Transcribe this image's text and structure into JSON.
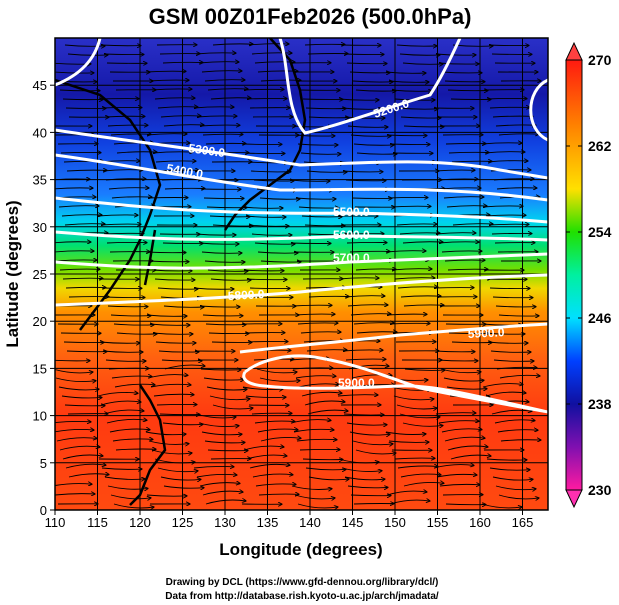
{
  "chart_data": {
    "type": "heatmap",
    "title": "GSM 00Z01Feb2026 (500.0hPa)",
    "xlabel": "Longitude (degrees)",
    "ylabel": "Latitude  (degrees)",
    "xlim": [
      110,
      168
    ],
    "ylim": [
      0,
      50
    ],
    "xticks": [
      "110",
      "115",
      "120",
      "125",
      "130",
      "135",
      "140",
      "145",
      "150",
      "155",
      "160",
      "165"
    ],
    "yticks": [
      "0",
      "5",
      "10",
      "15",
      "20",
      "25",
      "30",
      "35",
      "40",
      "45"
    ],
    "grid": true,
    "shaded_field": "temperature (K)",
    "colorbar": {
      "range": [
        230,
        270
      ],
      "ticks": [
        "270",
        "262",
        "254",
        "246",
        "238",
        "230"
      ],
      "colors": [
        "#ff1a7a",
        "#a010b0",
        "#1010a0",
        "#0040ff",
        "#00e0ff",
        "#00e060",
        "#20e000",
        "#ffe000",
        "#ff8000",
        "#ff2000"
      ]
    },
    "contour_field": "geopotential height (m)",
    "contour_labels": [
      "5200.0",
      "5300.0",
      "5400.0",
      "5500.0",
      "5600.0",
      "5700.0",
      "5800.0",
      "5900.0",
      "5900.0"
    ],
    "overlay": "streamlines of wind"
  },
  "credits": {
    "line1": "Drawing by DCL (https://www.gfd-dennou.org/library/dcl/)",
    "line2": "Data from http://database.rish.kyoto-u.ac.jp/arch/jmadata/"
  }
}
